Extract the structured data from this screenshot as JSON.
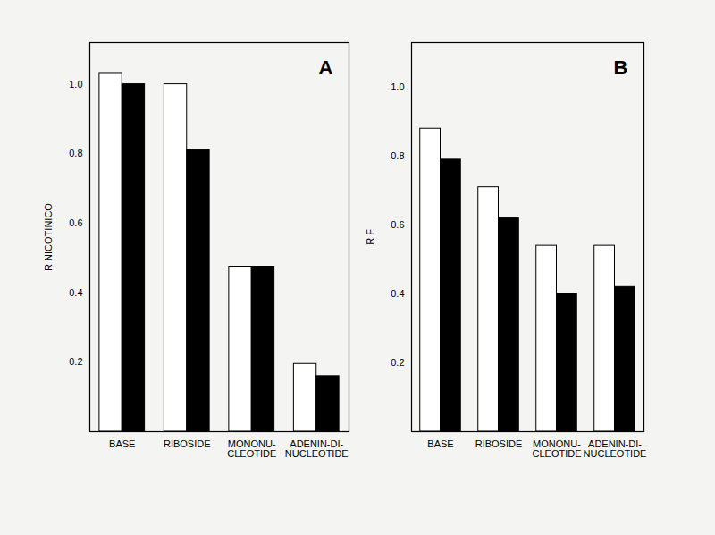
{
  "chart_data": [
    {
      "type": "bar",
      "title": "A",
      "y_label": "R NICOTINICO",
      "categories": [
        "BASE",
        "RIBOSIDE",
        "MONONU-\nCLEOTIDE",
        "ADENIN-DI-\nNUCLEOTIDE"
      ],
      "series": [
        {
          "line_style": "hatched",
          "color": "#000000",
          "values": [
            1.03,
            1.0,
            0.475,
            0.195
          ]
        },
        {
          "line_style": "solid",
          "color": "#000000",
          "values": [
            1.0,
            0.81,
            0.475,
            0.16
          ]
        }
      ],
      "ylim": [
        0,
        1.12
      ],
      "yticks": [
        0.2,
        0.4,
        0.6,
        0.8,
        {
          "value": 1,
          "label": "1.0"
        }
      ]
    },
    {
      "type": "bar",
      "title": "B",
      "y_label": "R F",
      "categories": [
        "BASE",
        "RIBOSIDE",
        "MONONU-\nCLEOTIDE",
        "ADENIN-DI-\nNUCLEOTIDE"
      ],
      "series": [
        {
          "line_style": "hatched",
          "color": "#000000",
          "values": [
            0.88,
            0.71,
            0.54,
            0.54
          ]
        },
        {
          "line_style": "solid",
          "color": "#000000",
          "values": [
            0.79,
            0.62,
            0.4,
            0.42
          ]
        }
      ],
      "ylim": [
        0,
        1.13
      ],
      "yticks": [
        0.2,
        0.4,
        0.6,
        0.8,
        {
          "value": 1,
          "label": "1.0"
        }
      ]
    }
  ]
}
